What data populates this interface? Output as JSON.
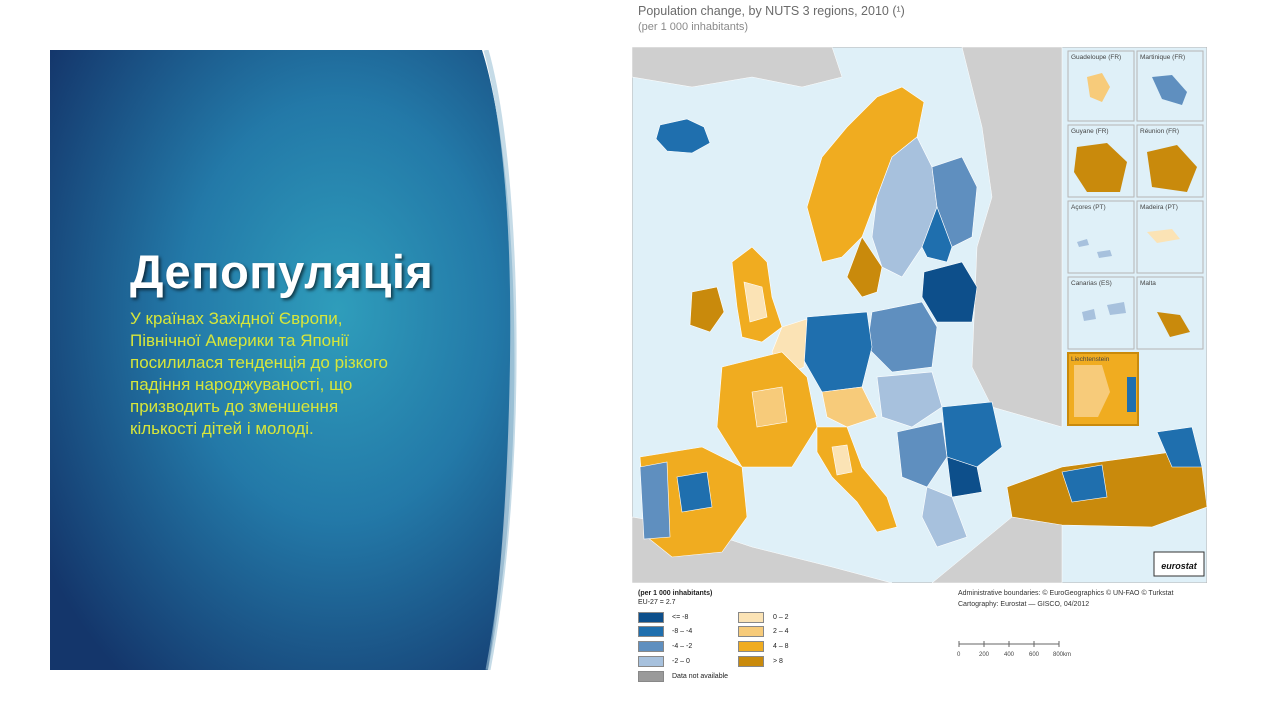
{
  "slide": {
    "title": "Депопуляція",
    "body": "У країнах Західної Європи, Північної Америки та Японії посилилася тенденція до різкого падіння народжуваності, що призводить до зменшення кількості дітей і молоді."
  },
  "map": {
    "title": "Population change, by NUTS 3 regions, 2010 (¹)",
    "subtitle": "(per 1 000 inhabitants)",
    "insets": [
      {
        "label": "Guadeloupe (FR)"
      },
      {
        "label": "Martinique (FR)"
      },
      {
        "label": "Guyane (FR)"
      },
      {
        "label": "Réunion (FR)"
      },
      {
        "label": "Açores (PT)"
      },
      {
        "label": "Madeira (PT)"
      },
      {
        "label": "Canarias (ES)"
      },
      {
        "label": "Malta"
      },
      {
        "label": "Liechtenstein"
      }
    ],
    "logo": "eurostat"
  },
  "legend": {
    "title": "(per 1 000 inhabitants)",
    "eu": "EU-27 = 2.7",
    "classes": [
      {
        "label": "<= -8",
        "color": "#0d4f8b"
      },
      {
        "label": "-8 – -4",
        "color": "#1f6fae"
      },
      {
        "label": "-4 – -2",
        "color": "#5f8fbf"
      },
      {
        "label": "-2 – 0",
        "color": "#a7c1dd"
      },
      {
        "label": "0 – 2",
        "color": "#fbe3b5"
      },
      {
        "label": "2 – 4",
        "color": "#f7cb7a"
      },
      {
        "label": "4 – 8",
        "color": "#f0ac20"
      },
      {
        "label": "> 8",
        "color": "#c98a0c"
      }
    ],
    "na": {
      "label": "Data not available",
      "color": "#9a9a9a"
    }
  },
  "credits": {
    "line1": "Administrative boundaries: © EuroGeographics © UN-FAO © Turkstat",
    "line2": "Cartography: Eurostat — GISCO, 04/2012"
  },
  "scale": {
    "ticks": [
      "0",
      "200",
      "400",
      "600",
      "800km"
    ]
  }
}
